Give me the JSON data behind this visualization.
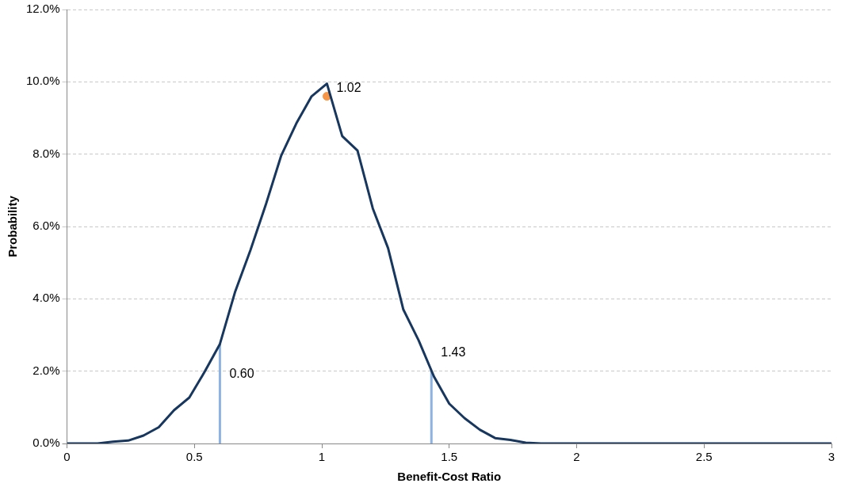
{
  "chart_data": {
    "type": "line",
    "xlabel": "Benefit-Cost Ratio",
    "ylabel": "Probability",
    "x": [
      0,
      0.06,
      0.12,
      0.18,
      0.24,
      0.3,
      0.36,
      0.42,
      0.48,
      0.54,
      0.6,
      0.66,
      0.72,
      0.78,
      0.84,
      0.9,
      0.96,
      1.02,
      1.08,
      1.14,
      1.2,
      1.26,
      1.32,
      1.38,
      1.44,
      1.5,
      1.56,
      1.62,
      1.68,
      1.74,
      1.8,
      1.86,
      2.0,
      2.5,
      3.0
    ],
    "series": [
      {
        "color": "#17375e",
        "values": [
          0,
          0,
          0,
          0.05,
          0.08,
          0.22,
          0.45,
          0.92,
          1.27,
          1.98,
          2.75,
          4.2,
          5.35,
          6.6,
          7.95,
          8.85,
          9.6,
          9.95,
          8.5,
          8.1,
          6.5,
          5.4,
          3.7,
          2.85,
          1.85,
          1.1,
          0.7,
          0.38,
          0.15,
          0.1,
          0.02,
          0,
          0,
          0,
          0
        ]
      },
      {
        "type": "scatter",
        "color": "#f79646",
        "x": [
          1.02
        ],
        "values": [
          9.6
        ],
        "marker": "circle"
      }
    ],
    "xlim": [
      0,
      3
    ],
    "xticks": [
      0,
      0.5,
      1,
      1.5,
      2,
      2.5,
      3
    ],
    "ylim": [
      0,
      12
    ],
    "yticks": [
      {
        "value": 0,
        "label": "0.0%"
      },
      {
        "value": 2,
        "label": "2.0%"
      },
      {
        "value": 4,
        "label": "4.0%"
      },
      {
        "value": 6,
        "label": "6.0%"
      },
      {
        "value": 8,
        "label": "8.0%"
      },
      {
        "value": 10,
        "label": "10.0%"
      },
      {
        "value": 12,
        "label": "12.0%"
      }
    ],
    "grid": "y",
    "legend": false,
    "marker": "none",
    "line_style": "solid",
    "ref_lines": [
      {
        "axis": "x",
        "value": 0.6,
        "label": "0.60",
        "color": "#8db3e2"
      },
      {
        "axis": "x",
        "value": 1.43,
        "label": "1.43",
        "color": "#8db3e2"
      }
    ],
    "annotations": [
      {
        "text": "1.02",
        "x": 1.02,
        "y": 9.95
      }
    ]
  }
}
